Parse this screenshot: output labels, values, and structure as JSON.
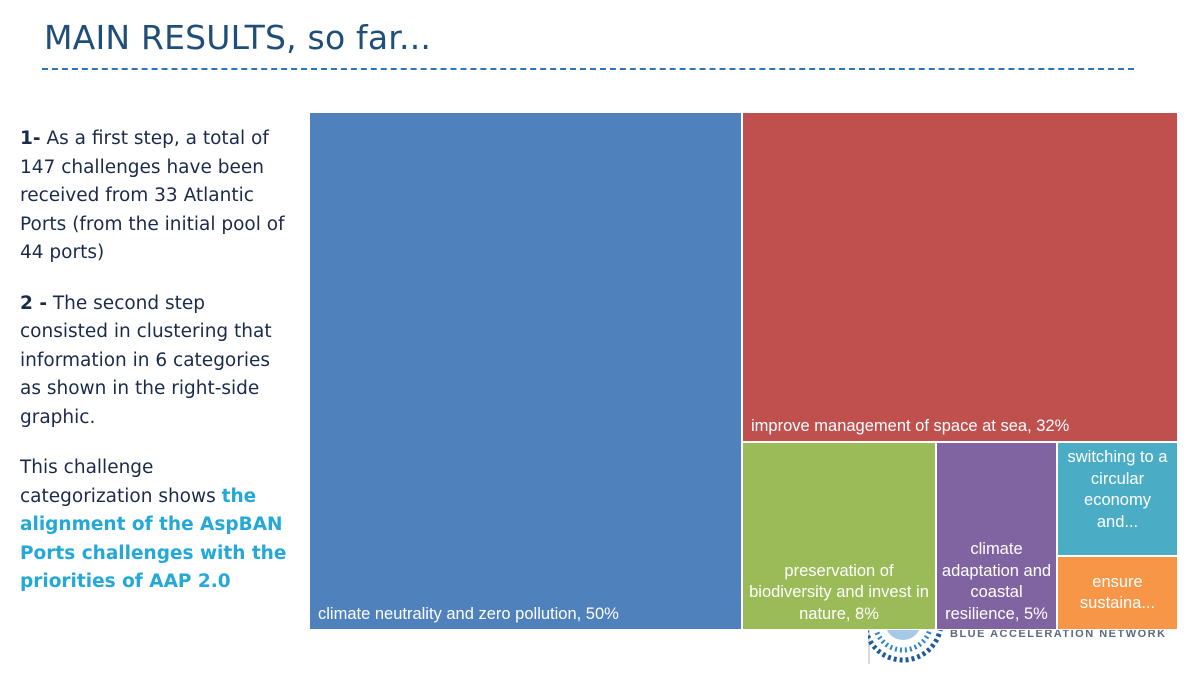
{
  "slide": {
    "title": "MAIN RESULTS, so far...",
    "step1_num": "1-",
    "step1_text": " As a first step, a total of 147 challenges have been received from 33 Atlantic Ports (from the initial pool of 44 ports)",
    "step2_num": "2 -",
    "step2_text": " The second step consisted in clustering that information in 6 categories as shown in the right-side graphic.",
    "conclusion_text": "This challenge categorization shows ",
    "conclusion_highlight": "the alignment of the AspBAN Ports challenges with the priorities of AAP 2.0",
    "logo_text": "BLUE ACCELERATION NETWORK"
  },
  "colors": {
    "blue": "#4f81bd",
    "red": "#c0504d",
    "green": "#9bbb59",
    "purple": "#8064a2",
    "cyan": "#4bacc6",
    "orange": "#f79646",
    "title": "#1f4e79",
    "accent": "#23a8d8"
  },
  "chart_data": {
    "type": "treemap",
    "title": "",
    "categories": [
      {
        "label": "climate neutrality and zero pollution, 50%",
        "name": "climate neutrality and zero pollution",
        "value": 50
      },
      {
        "label": "improve management of space at sea, 32%",
        "name": "improve management of space at sea",
        "value": 32
      },
      {
        "label": "preservation of biodiversity and invest in nature, 8%",
        "name": "preservation of biodiversity and invest in nature",
        "value": 8
      },
      {
        "label": "climate adaptation and coastal resilience, 5%",
        "name": "climate adaptation and coastal resilience",
        "value": 5
      },
      {
        "label": "switching to a circular economy and...",
        "name": "switching to a circular economy and...",
        "value": 3
      },
      {
        "label": "ensure sustaina...",
        "name": "ensure sustaina...",
        "value": 2
      }
    ]
  }
}
